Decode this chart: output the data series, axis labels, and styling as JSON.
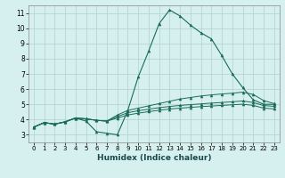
{
  "xlabel": "Humidex (Indice chaleur)",
  "background_color": "#d6f0f0",
  "grid_color": "#b0d0d0",
  "line_color": "#1a6b5a",
  "xlim": [
    -0.5,
    23.5
  ],
  "ylim": [
    2.5,
    11.5
  ],
  "xticks": [
    0,
    1,
    2,
    3,
    4,
    5,
    6,
    7,
    8,
    9,
    10,
    11,
    12,
    13,
    14,
    15,
    16,
    17,
    18,
    19,
    20,
    21,
    22,
    23
  ],
  "yticks": [
    3,
    4,
    5,
    6,
    7,
    8,
    9,
    10,
    11
  ],
  "series1": [
    3.5,
    3.8,
    3.7,
    3.85,
    4.1,
    3.9,
    3.2,
    3.1,
    3.0,
    4.6,
    6.8,
    8.5,
    10.3,
    11.2,
    10.8,
    10.2,
    9.7,
    9.3,
    8.2,
    7.0,
    6.1,
    5.3,
    5.0,
    5.0
  ],
  "series2": [
    3.5,
    3.8,
    3.7,
    3.85,
    4.1,
    4.05,
    3.95,
    3.9,
    4.3,
    4.6,
    4.75,
    4.9,
    5.05,
    5.2,
    5.35,
    5.45,
    5.55,
    5.62,
    5.68,
    5.73,
    5.8,
    5.65,
    5.25,
    5.05
  ],
  "series3": [
    3.5,
    3.8,
    3.7,
    3.85,
    4.1,
    4.05,
    3.95,
    3.9,
    4.2,
    4.45,
    4.58,
    4.68,
    4.78,
    4.86,
    4.93,
    4.98,
    5.03,
    5.08,
    5.12,
    5.17,
    5.22,
    5.12,
    4.92,
    4.87
  ],
  "series4": [
    3.5,
    3.8,
    3.7,
    3.85,
    4.1,
    4.05,
    3.95,
    3.9,
    4.1,
    4.3,
    4.42,
    4.52,
    4.61,
    4.69,
    4.75,
    4.8,
    4.85,
    4.89,
    4.93,
    4.97,
    5.01,
    4.93,
    4.75,
    4.7
  ]
}
